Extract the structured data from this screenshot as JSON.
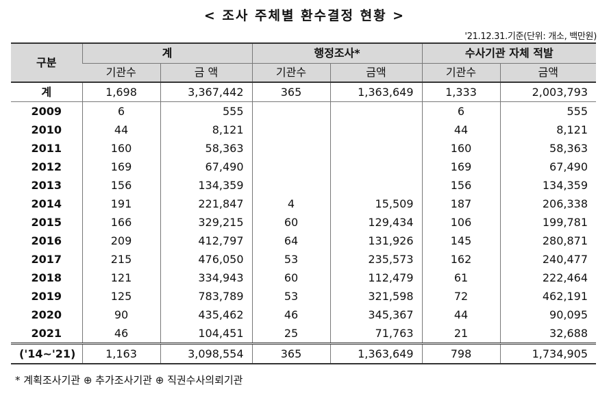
{
  "title": "< 조사 주체별 환수결정 현황 >",
  "unit_note": "'21.12.31.기준(단위: 개소, 백만원)",
  "headers": {
    "division": "구분",
    "group_total": "계",
    "group_admin": "행정조사*",
    "group_investigation": "수사기관 자체 적발",
    "sub_count_1": "기관수",
    "sub_amount_1": "금 액",
    "sub_count_2": "기관수",
    "sub_amount_2": "금액",
    "sub_count_3": "기관수",
    "sub_amount_3": "금액"
  },
  "rows": [
    {
      "label": "계",
      "c1": "1,698",
      "a1": "3,367,442",
      "c2": "365",
      "a2": "1,363,649",
      "c3": "1,333",
      "a3": "2,003,793"
    },
    {
      "label": "2009",
      "c1": "6",
      "a1": "555",
      "c2": "",
      "a2": "",
      "c3": "6",
      "a3": "555"
    },
    {
      "label": "2010",
      "c1": "44",
      "a1": "8,121",
      "c2": "",
      "a2": "",
      "c3": "44",
      "a3": "8,121"
    },
    {
      "label": "2011",
      "c1": "160",
      "a1": "58,363",
      "c2": "",
      "a2": "",
      "c3": "160",
      "a3": "58,363"
    },
    {
      "label": "2012",
      "c1": "169",
      "a1": "67,490",
      "c2": "",
      "a2": "",
      "c3": "169",
      "a3": "67,490"
    },
    {
      "label": "2013",
      "c1": "156",
      "a1": "134,359",
      "c2": "",
      "a2": "",
      "c3": "156",
      "a3": "134,359"
    },
    {
      "label": "2014",
      "c1": "191",
      "a1": "221,847",
      "c2": "4",
      "a2": "15,509",
      "c3": "187",
      "a3": "206,338"
    },
    {
      "label": "2015",
      "c1": "166",
      "a1": "329,215",
      "c2": "60",
      "a2": "129,434",
      "c3": "106",
      "a3": "199,781"
    },
    {
      "label": "2016",
      "c1": "209",
      "a1": "412,797",
      "c2": "64",
      "a2": "131,926",
      "c3": "145",
      "a3": "280,871"
    },
    {
      "label": "2017",
      "c1": "215",
      "a1": "476,050",
      "c2": "53",
      "a2": "235,573",
      "c3": "162",
      "a3": "240,477"
    },
    {
      "label": "2018",
      "c1": "121",
      "a1": "334,943",
      "c2": "60",
      "a2": "112,479",
      "c3": "61",
      "a3": "222,464"
    },
    {
      "label": "2019",
      "c1": "125",
      "a1": "783,789",
      "c2": "53",
      "a2": "321,598",
      "c3": "72",
      "a3": "462,191"
    },
    {
      "label": "2020",
      "c1": "90",
      "a1": "435,462",
      "c2": "46",
      "a2": "345,367",
      "c3": "44",
      "a3": "90,095"
    },
    {
      "label": "2021",
      "c1": "46",
      "a1": "104,451",
      "c2": "25",
      "a2": "71,763",
      "c3": "21",
      "a3": "32,688"
    },
    {
      "label": "('14~'21)",
      "c1": "1,163",
      "a1": "3,098,554",
      "c2": "365",
      "a2": "1,363,649",
      "c3": "798",
      "a3": "1,734,905"
    }
  ],
  "footnote": "* 계획조사기관 ⊕ 추가조사기관 ⊕ 직권수사의뢰기관",
  "colors": {
    "header_bg": "#d9d9d9",
    "border": "#333333"
  }
}
